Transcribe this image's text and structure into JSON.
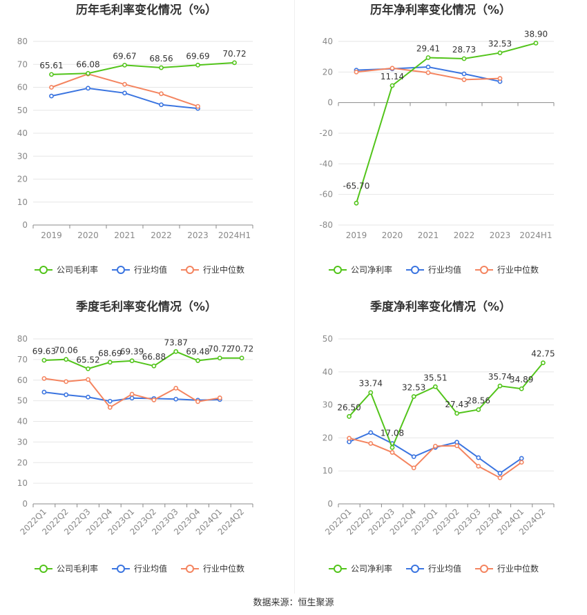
{
  "colors": {
    "company": "#52c41a",
    "industry_avg": "#3a74e0",
    "industry_median": "#f4845f",
    "grid": "#e6e6e6",
    "axis": "#888888"
  },
  "legend": {
    "company_gross": "公司毛利率",
    "company_net": "公司净利率",
    "industry_avg": "行业均值",
    "industry_median": "行业中位数"
  },
  "source": "数据来源：恒生聚源",
  "chart_data": [
    {
      "type": "line",
      "title": "历年毛利率变化情况（%）",
      "categories": [
        "2019",
        "2020",
        "2021",
        "2022",
        "2023",
        "2024H1"
      ],
      "ylim": [
        0,
        80
      ],
      "yticks": [
        0,
        10,
        20,
        30,
        40,
        50,
        60,
        70,
        80
      ],
      "rotate_labels": false,
      "series": [
        {
          "name": "公司毛利率",
          "key": "company",
          "values": [
            65.61,
            66.08,
            69.67,
            68.56,
            69.69,
            70.72
          ],
          "labels": true
        },
        {
          "name": "行业均值",
          "key": "industry_avg",
          "values": [
            56.2,
            59.6,
            57.5,
            52.4,
            50.8,
            null
          ],
          "labels": false
        },
        {
          "name": "行业中位数",
          "key": "industry_median",
          "values": [
            60.0,
            65.8,
            61.3,
            57.2,
            51.7,
            null
          ],
          "labels": false
        }
      ]
    },
    {
      "type": "line",
      "title": "历年净利率变化情况（%）",
      "categories": [
        "2019",
        "2020",
        "2021",
        "2022",
        "2023",
        "2024H1"
      ],
      "ylim": [
        -80,
        40
      ],
      "yticks": [
        -80,
        -60,
        -40,
        -20,
        0,
        20,
        40
      ],
      "rotate_labels": false,
      "series": [
        {
          "name": "公司净利率",
          "key": "company",
          "values": [
            -65.7,
            11.14,
            29.41,
            28.73,
            32.53,
            38.9
          ],
          "labels": true
        },
        {
          "name": "行业均值",
          "key": "industry_avg",
          "values": [
            21.2,
            22.1,
            23.3,
            18.8,
            13.8,
            null
          ],
          "labels": false
        },
        {
          "name": "行业中位数",
          "key": "industry_median",
          "values": [
            20.0,
            22.5,
            19.6,
            15.0,
            15.8,
            null
          ],
          "labels": false
        }
      ]
    },
    {
      "type": "line",
      "title": "季度毛利率变化情况（%）",
      "categories": [
        "2022Q1",
        "2022Q2",
        "2022Q3",
        "2022Q4",
        "2023Q1",
        "2023Q2",
        "2023Q3",
        "2023Q4",
        "2024Q1",
        "2024Q2"
      ],
      "ylim": [
        0,
        80
      ],
      "yticks": [
        0,
        10,
        20,
        30,
        40,
        50,
        60,
        70,
        80
      ],
      "rotate_labels": true,
      "series": [
        {
          "name": "公司毛利率",
          "key": "company",
          "values": [
            69.63,
            70.06,
            65.52,
            68.69,
            69.39,
            66.88,
            73.87,
            69.48,
            70.72,
            70.72
          ],
          "labels": true
        },
        {
          "name": "行业均值",
          "key": "industry_avg",
          "values": [
            54.2,
            52.9,
            51.8,
            49.8,
            51.3,
            51.1,
            50.8,
            50.3,
            50.6,
            null
          ],
          "labels": false
        },
        {
          "name": "行业中位数",
          "key": "industry_median",
          "values": [
            60.8,
            59.3,
            60.3,
            46.8,
            53.2,
            50.4,
            56.1,
            49.6,
            51.4,
            null
          ],
          "labels": false
        }
      ]
    },
    {
      "type": "line",
      "title": "季度净利率变化情况（%）",
      "categories": [
        "2022Q1",
        "2022Q2",
        "2022Q3",
        "2022Q4",
        "2023Q1",
        "2023Q2",
        "2023Q3",
        "2023Q4",
        "2024Q1",
        "2024Q2"
      ],
      "ylim": [
        0,
        50
      ],
      "yticks": [
        0,
        10,
        20,
        30,
        40,
        50
      ],
      "rotate_labels": true,
      "series": [
        {
          "name": "公司净利率",
          "key": "company",
          "values": [
            26.5,
            33.74,
            17.08,
            32.53,
            35.51,
            27.43,
            28.56,
            35.74,
            34.89,
            42.75
          ],
          "labels": true
        },
        {
          "name": "行业均值",
          "key": "industry_avg",
          "values": [
            18.8,
            21.6,
            18.3,
            14.3,
            17.1,
            18.7,
            14.0,
            9.3,
            13.8,
            null
          ],
          "labels": false
        },
        {
          "name": "行业中位数",
          "key": "industry_median",
          "values": [
            19.9,
            18.3,
            15.6,
            10.9,
            17.5,
            17.6,
            11.4,
            7.9,
            12.6,
            null
          ],
          "labels": false
        }
      ]
    }
  ]
}
